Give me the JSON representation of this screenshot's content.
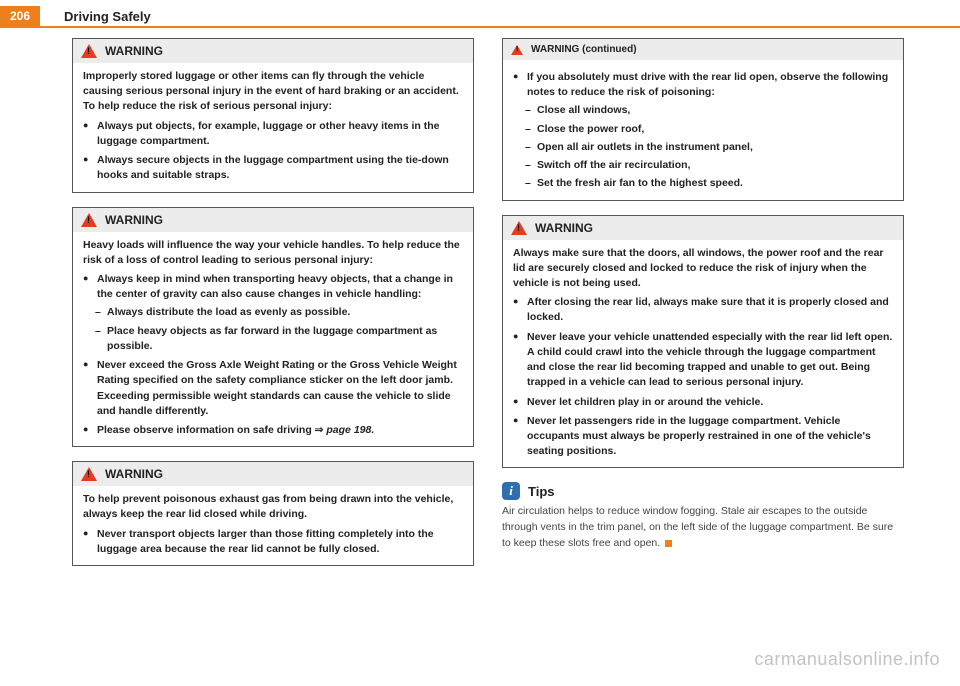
{
  "header": {
    "page_number": "206",
    "title": "Driving Safely"
  },
  "left": {
    "w1": {
      "title": "WARNING",
      "intro": "Improperly stored luggage or other items can fly through the vehicle causing serious personal injury in the event of hard braking or an accident. To help reduce the risk of serious personal injury:",
      "b1": "Always put objects, for example, luggage or other heavy items in the luggage compartment.",
      "b2": "Always secure objects in the luggage compartment using the tie-down hooks and suitable straps."
    },
    "w2": {
      "title": "WARNING",
      "intro": "Heavy loads will influence the way your vehicle handles. To help reduce the risk of a loss of control leading to serious personal injury:",
      "b1": "Always keep in mind when transporting heavy objects, that a change in the center of gravity can also cause changes in vehicle handling:",
      "d1": "Always distribute the load as evenly as possible.",
      "d2": "Place heavy objects as far forward in the luggage compart­ment as possible.",
      "b2": "Never exceed the Gross Axle Weight Rating or the Gross Vehicle Weight Rating specified on the safety compliance sticker on the left door jamb. Exceeding permissible weight standards can cause the vehicle to slide and handle differently.",
      "b3a": "Please observe information on safe driving ",
      "b3b": "page 198."
    },
    "w3": {
      "title": "WARNING",
      "intro": "To help prevent poisonous exhaust gas from being drawn into the vehicle, always keep the rear lid closed while driving.",
      "b1": "Never transport objects larger than those fitting completely into the luggage area because the rear lid cannot be fully closed."
    }
  },
  "right": {
    "wc": {
      "title": "WARNING (continued)",
      "b1": "If you absolutely must drive with the rear lid open, observe the following notes to reduce the risk of poisoning:",
      "d1": "Close all windows,",
      "d2": "Close the power roof,",
      "d3": "Open all air outlets in the instrument panel,",
      "d4": "Switch off the air recirculation,",
      "d5": "Set the fresh air fan to the highest speed."
    },
    "w4": {
      "title": "WARNING",
      "intro": "Always make sure that the doors, all windows, the power roof and the rear lid are securely closed and locked to reduce the risk of injury when the vehicle is not being used.",
      "b1": "After closing the rear lid, always make sure that it is properly closed and locked.",
      "b2": "Never leave your vehicle unattended especially with the rear lid left open. A child could crawl into the vehicle through the luggage compartment and close the rear lid becoming trapped and unable to get out. Being trapped in a vehicle can lead to serious personal injury.",
      "b3": "Never let children play in or around the vehicle.",
      "b4": "Never let passengers ride in the luggage compartment. Vehicle occupants must always be properly restrained in one of the vehicle's seating positions."
    },
    "tips": {
      "title": "Tips",
      "body": "Air circulation helps to reduce window fogging. Stale air escapes to the outside through vents in the trim panel, on the left side of the luggage compartment. Be sure to keep these slots free and open."
    }
  },
  "watermark": "carmanualsonline.info"
}
